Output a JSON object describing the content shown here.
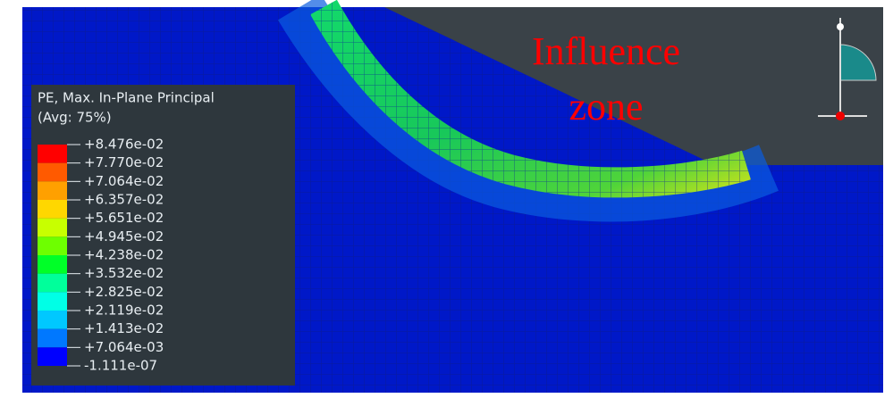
{
  "legend": {
    "title": [
      "PE, Max. In-Plane Principal",
      "(Avg: 75%)"
    ],
    "labels": [
      "+8.476e-02",
      "+7.770e-02",
      "+7.064e-02",
      "+6.357e-02",
      "+5.651e-02",
      "+4.945e-02",
      "+4.238e-02",
      "+3.532e-02",
      "+2.825e-02",
      "+2.119e-02",
      "+1.413e-02",
      "+7.064e-03",
      "-1.111e-07"
    ]
  },
  "annotation": {
    "lines": [
      "Influence",
      "zone"
    ]
  }
}
